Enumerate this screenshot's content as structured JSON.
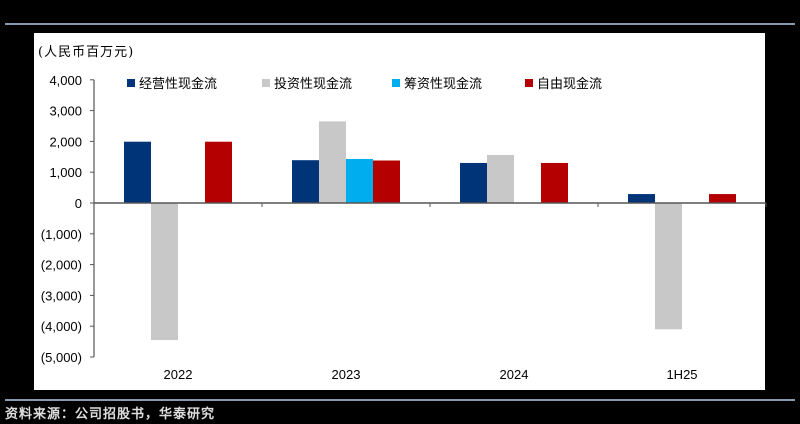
{
  "unit_label": "(人民币百万元)",
  "source": "资料来源：公司招股书，华泰研究",
  "legend": [
    {
      "label": "经营性现金流",
      "color": "#003478"
    },
    {
      "label": "投资性现金流",
      "color": "#c8c8c8"
    },
    {
      "label": "筹资性现金流",
      "color": "#00aeef"
    },
    {
      "label": "自由现金流",
      "color": "#b40000"
    }
  ],
  "chart_data": {
    "type": "bar",
    "title": "",
    "xlabel": "",
    "ylabel": "(人民币百万元)",
    "ylim": [
      -5000,
      4000
    ],
    "yticks": [
      4000,
      3000,
      2000,
      1000,
      0,
      -1000,
      -2000,
      -3000,
      -4000,
      -5000
    ],
    "ytick_labels": [
      "4,000",
      "3,000",
      "2,000",
      "1,000",
      "0",
      "(1,000)",
      "(2,000)",
      "(3,000)",
      "(4,000)",
      "(5,000)"
    ],
    "categories": [
      "2022",
      "2023",
      "2024",
      "1H25"
    ],
    "series": [
      {
        "name": "经营性现金流",
        "color": "#003478",
        "values": [
          1990,
          1390,
          1300,
          290
        ]
      },
      {
        "name": "投资性现金流",
        "color": "#c8c8c8",
        "values": [
          -4450,
          2650,
          1560,
          -4100
        ]
      },
      {
        "name": "筹资性现金流",
        "color": "#00aeef",
        "values": [
          0,
          1430,
          0,
          0
        ]
      },
      {
        "name": "自由现金流",
        "color": "#b40000",
        "values": [
          1990,
          1380,
          1300,
          290
        ]
      }
    ],
    "grid": false,
    "legend_position": "top"
  }
}
